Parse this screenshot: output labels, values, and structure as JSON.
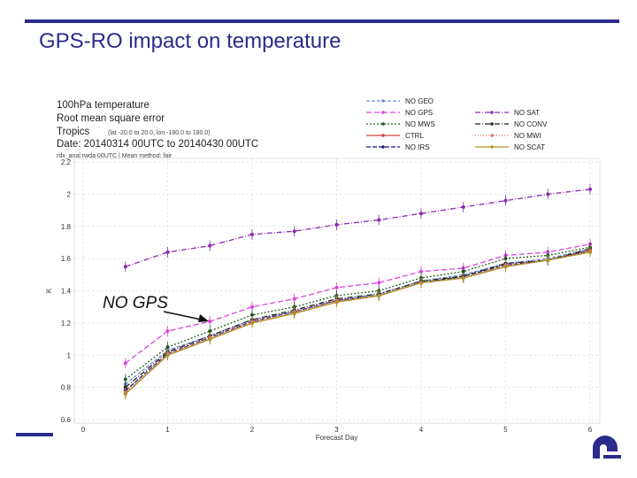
{
  "slide": {
    "title": "GPS-RO impact on temperature"
  },
  "annotation": {
    "text": "NO GPS"
  },
  "colors": {
    "accent": "#2b2b8c"
  },
  "chart_data": {
    "type": "line",
    "title_lines": [
      "100hPa temperature",
      "Root mean square error",
      "Tropics",
      "Date: 20140314 00UTC to 20140430 00UTC"
    ],
    "region_detail": "(lat -20.0 to 20.0, lon -180.0 to 180.0)",
    "caption": "rdx_anal rwda 00UTC | Mean method: fair",
    "xlabel": "Forecast Day",
    "ylabel": "K",
    "xlim": [
      0,
      6
    ],
    "ylim": [
      0.6,
      2.2
    ],
    "xticks": [
      0,
      1,
      2,
      3,
      4,
      5,
      6
    ],
    "yticks": [
      0.6,
      0.8,
      1,
      1.2,
      1.4,
      1.6,
      1.8,
      2,
      2.2
    ],
    "x": [
      0.5,
      1,
      1.5,
      2,
      2.5,
      3,
      3.5,
      4,
      4.5,
      5,
      5.5,
      6
    ],
    "series": [
      {
        "name": "NO GEO",
        "color": "#6f8fcf",
        "dash": "4,2",
        "values": [
          0.82,
          1.03,
          1.12,
          1.22,
          1.27,
          1.34,
          1.38,
          1.46,
          1.5,
          1.57,
          1.6,
          1.66
        ]
      },
      {
        "name": "NO GPS",
        "color": "#e040e0",
        "dash": "6,3",
        "values": [
          0.95,
          1.15,
          1.21,
          1.3,
          1.35,
          1.42,
          1.45,
          1.52,
          1.54,
          1.62,
          1.64,
          1.69
        ]
      },
      {
        "name": "NO MWS",
        "color": "#1f5f1f",
        "dash": "2,2",
        "values": [
          0.85,
          1.05,
          1.15,
          1.25,
          1.3,
          1.37,
          1.4,
          1.48,
          1.52,
          1.6,
          1.62,
          1.67
        ]
      },
      {
        "name": "CTRL",
        "color": "#d04040",
        "dash": "",
        "values": [
          0.76,
          1.0,
          1.1,
          1.2,
          1.26,
          1.33,
          1.37,
          1.45,
          1.48,
          1.55,
          1.59,
          1.65
        ]
      },
      {
        "name": "NO IRS",
        "color": "#1a1a80",
        "dash": "5,2",
        "values": [
          0.78,
          1.01,
          1.11,
          1.21,
          1.27,
          1.34,
          1.37,
          1.45,
          1.49,
          1.56,
          1.59,
          1.65
        ]
      },
      {
        "name": "NO SAT",
        "color": "#8a2ab0",
        "dash": "6,2,1,2",
        "values": [
          1.55,
          1.64,
          1.68,
          1.75,
          1.77,
          1.81,
          1.84,
          1.88,
          1.92,
          1.96,
          2.0,
          2.03
        ]
      },
      {
        "name": "NO CONV",
        "color": "#222222",
        "dash": "6,2,1,2",
        "values": [
          0.8,
          1.02,
          1.12,
          1.22,
          1.28,
          1.35,
          1.38,
          1.46,
          1.49,
          1.57,
          1.59,
          1.66
        ]
      },
      {
        "name": "NO MWI",
        "color": "#e07060",
        "dash": "1,2",
        "values": [
          0.77,
          1.01,
          1.11,
          1.21,
          1.27,
          1.34,
          1.37,
          1.45,
          1.48,
          1.56,
          1.59,
          1.65
        ]
      },
      {
        "name": "NO SCAT",
        "color": "#b09020",
        "dash": "",
        "values": [
          0.76,
          1.0,
          1.1,
          1.2,
          1.26,
          1.33,
          1.37,
          1.45,
          1.48,
          1.55,
          1.59,
          1.64
        ]
      }
    ]
  }
}
